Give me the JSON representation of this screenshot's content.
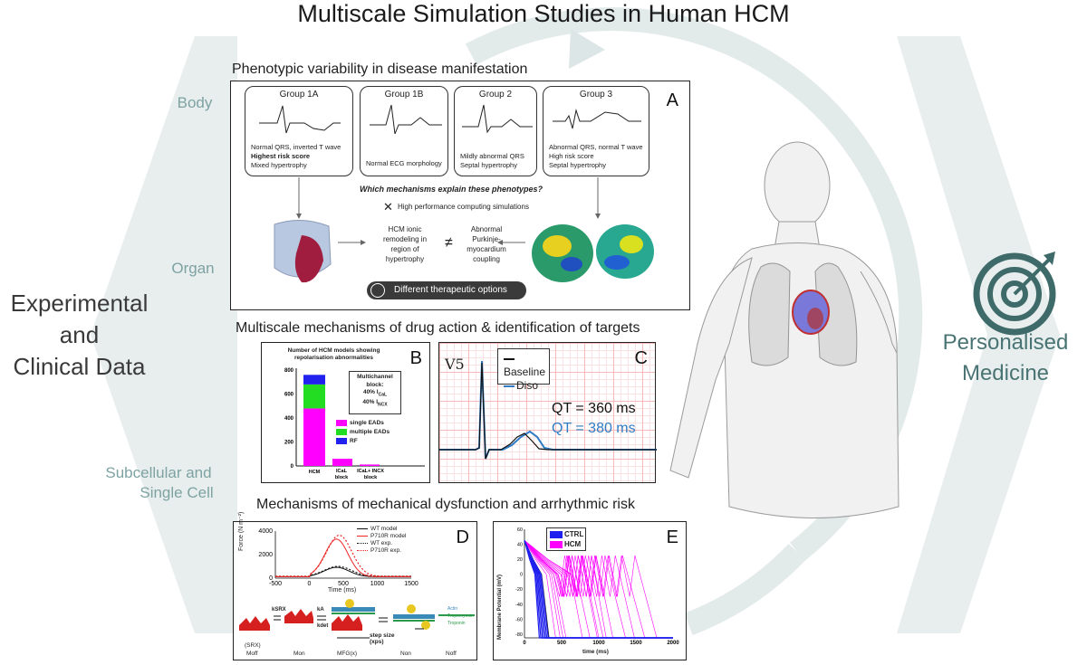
{
  "title": "Multiscale Simulation Studies in Human HCM",
  "left": {
    "body": "Body",
    "organ": "Organ",
    "data_line1": "Experimental",
    "data_line2": "and",
    "data_line3": "Clinical Data",
    "subcell_line1": "Subcellular and",
    "subcell_line2": "Single Cell"
  },
  "right": {
    "line1": "Personalised",
    "line2": "Medicine",
    "icon": "target-icon"
  },
  "sections": {
    "s1": "Phenotypic variability in disease manifestation",
    "s2": "Multiscale mechanisms of drug action & identification of targets",
    "s3": "Mechanisms of mechanical dysfunction and arrhythmic risk"
  },
  "panelA": {
    "letter": "A",
    "groups": [
      {
        "title": "Group 1A",
        "lines": [
          "Normal QRS, inverted T wave",
          "Highest risk score",
          "Mixed hypertrophy"
        ]
      },
      {
        "title": "Group 1B",
        "lines": [
          "Normal ECG morphology"
        ]
      },
      {
        "title": "Group 2",
        "lines": [
          "Mildly abnormal QRS",
          "Septal hypertrophy"
        ]
      },
      {
        "title": "Group 3",
        "lines": [
          "Abnormal QRS, normal T wave",
          "High risk score",
          "Septal hypertrophy"
        ]
      }
    ],
    "question": "Which mechanisms explain these phenotypes?",
    "hpc": "High performance computing simulations",
    "mech_left": [
      "HCM ionic",
      "remodeling in",
      "region of",
      "hypertrophy"
    ],
    "neq": "≠",
    "mech_right": [
      "Abnormal",
      "Purkinje-",
      "myocardium",
      "coupling"
    ],
    "therapy": "Different therapeutic options"
  },
  "panelB": {
    "letter": "B",
    "title1": "Number of HCM models showing",
    "title2": "repolarisation abnormalities",
    "box": [
      "Multichannel",
      "block:",
      "40% I",
      "CaL",
      "40% I",
      "NCX"
    ],
    "yticks": [
      "0",
      "200",
      "400",
      "600",
      "800"
    ],
    "xlabels": [
      "HCM",
      "ICaL",
      "block",
      "ICaL+ INCX",
      "block"
    ],
    "legend": [
      "single EADs",
      "multiple EADs",
      "RF"
    ],
    "colors": {
      "single": "#ff00ff",
      "multiple": "#22dd22",
      "rf": "#2222ee"
    }
  },
  "panelC": {
    "letter": "C",
    "lead": "V5",
    "legend": [
      "Baseline",
      "Diso"
    ],
    "qt_base": "QT = 360 ms",
    "qt_diso": "QT = 380 ms",
    "colors": {
      "baseline": "#111111",
      "diso": "#2f7bc4"
    }
  },
  "panelD": {
    "letter": "D",
    "ylabel": "Force (N m⁻²)",
    "xlabel": "Time (ms)",
    "yticks": [
      "0",
      "2000",
      "4000"
    ],
    "xticks": [
      "-500",
      "0",
      "500",
      "1000",
      "1500"
    ],
    "legend": [
      "WT model",
      "P710R model",
      "WT exp.",
      "P710R exp."
    ],
    "states": [
      "(SRX)",
      "Moff",
      "Mon",
      "MFG(x)",
      "Non",
      "Noff"
    ],
    "rates": [
      "kSRX",
      "kA",
      "kdet"
    ],
    "step": "step size",
    "step2": "(xps)",
    "filaments": [
      "Actin",
      "Tropomyosin",
      "Troponin"
    ]
  },
  "panelE": {
    "letter": "E",
    "ylabel": "Membrane Potential (mV)",
    "xlabel": "time (ms)",
    "yticks": [
      "60",
      "40",
      "20",
      "0",
      "-20",
      "-40",
      "-60",
      "-80"
    ],
    "xticks": [
      "0",
      "500",
      "1000",
      "1500",
      "2000"
    ],
    "legend": [
      "CTRL",
      "HCM"
    ],
    "colors": {
      "ctrl": "#2020ee",
      "hcm": "#ff00ff"
    }
  }
}
